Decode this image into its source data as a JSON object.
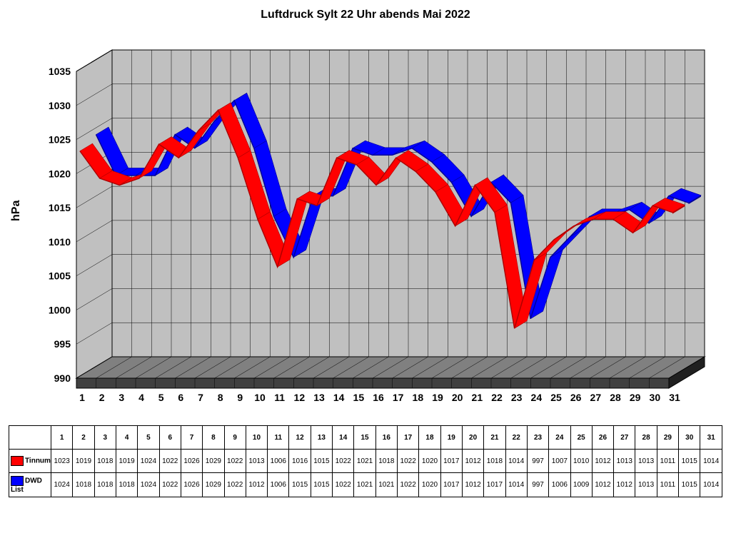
{
  "title": "Luftdruck Sylt 22 Uhr abends Mai 2022",
  "ylabel": "hPa",
  "chart": {
    "type": "line-3d-ribbon",
    "background_color": "#ffffff",
    "wall_color": "#c0c0c0",
    "floor_top_color": "#808080",
    "floor_front_color": "#404040",
    "grid_color": "#000000",
    "ylim": [
      990,
      1035
    ],
    "ytick_step": 5,
    "xlabels": [
      "1",
      "2",
      "3",
      "4",
      "5",
      "6",
      "7",
      "8",
      "9",
      "10",
      "11",
      "12",
      "13",
      "14",
      "15",
      "16",
      "17",
      "18",
      "19",
      "20",
      "21",
      "22",
      "23",
      "24",
      "25",
      "26",
      "27",
      "28",
      "29",
      "30",
      "31"
    ],
    "series": [
      {
        "name": "Tinnum",
        "color": "#ff0000",
        "shade": "#b00000",
        "values": [
          1023,
          1019,
          1018,
          1019,
          1024,
          1022,
          1026,
          1029,
          1022,
          1013,
          1006,
          1016,
          1015,
          1022,
          1021,
          1018,
          1022,
          1020,
          1017,
          1012,
          1018,
          1014,
          997,
          1007,
          1010,
          1012,
          1013,
          1013,
          1011,
          1015,
          1014
        ]
      },
      {
        "name": "DWD List",
        "color": "#0000ff",
        "shade": "#000099",
        "values": [
          1024,
          1018,
          1018,
          1018,
          1024,
          1022,
          1026,
          1029,
          1022,
          1012,
          1006,
          1015,
          1015,
          1022,
          1021,
          1021,
          1022,
          1020,
          1017,
          1012,
          1017,
          1014,
          997,
          1006,
          1009,
          1012,
          1012,
          1013,
          1011,
          1015,
          1014
        ]
      }
    ],
    "title_fontsize": 16,
    "axis_fontweight": "bold",
    "axis_fontsize": 14
  }
}
